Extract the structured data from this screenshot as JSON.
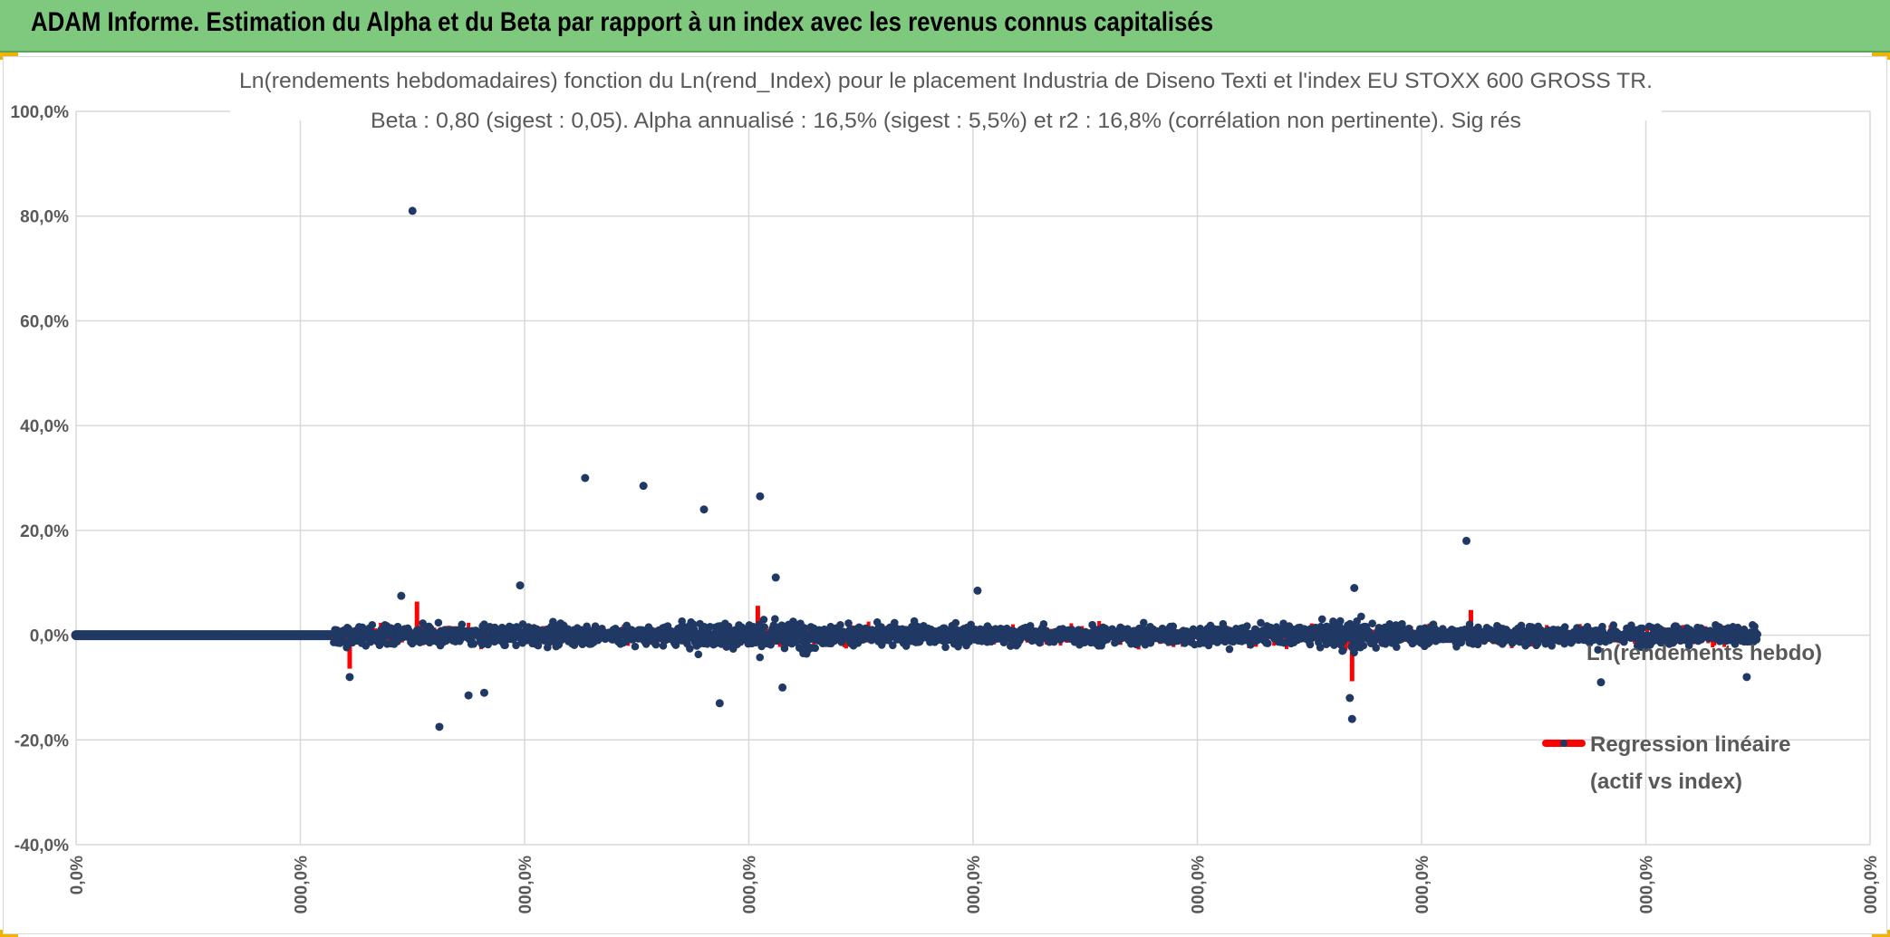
{
  "header": {
    "title": "ADAM Informe. Estimation du Alpha et du Beta par rapport à un index avec les revenus connus capitalisés"
  },
  "colors": {
    "header_bg": "#7fc97f",
    "scatter": "#203864",
    "regression": "#ff0000",
    "grid": "#d9d9d9",
    "text": "#595959"
  },
  "chart_data": {
    "type": "scatter",
    "title_line1": "Ln(rendements hebdomadaires) fonction du Ln(rend_Index) pour le placement Industria de Diseno Texti et l'index EU STOXX 600 GROSS TR.",
    "title_line2": "Beta : 0,80 (sigest : 0,05). Alpha annualisé : 16,5% (sigest : 5,5%) et r2 : 16,8% (corrélation non pertinente). Sig rés",
    "ylim": [
      -40,
      100
    ],
    "y_ticks": [
      -40,
      -20,
      0,
      20,
      40,
      60,
      80,
      100
    ],
    "y_tick_labels": [
      "-40,0%",
      "-20,0%",
      "0,0%",
      "20,0%",
      "40,0%",
      "60,0%",
      "80,0%",
      "100,0%"
    ],
    "x_ticks": [
      0,
      1,
      2,
      3,
      4,
      5,
      6,
      7,
      8
    ],
    "x_tick_labels": [
      "0,0%",
      "000,0%",
      "000,0%",
      "000,0%",
      "000,0%",
      "000,0%",
      "000,0%",
      "000,0%",
      "000,0%"
    ],
    "xlim": [
      0,
      8
    ],
    "series": [
      {
        "name": "Ln(rendements hebdo)",
        "type": "scatter",
        "flat_segment": {
          "x_from": 0,
          "x_to": 1.15,
          "y": 0
        },
        "dense_band": {
          "x_from": 1.15,
          "x_to": 7.5,
          "spread": 4
        },
        "outliers": [
          {
            "x": 1.5,
            "y": 81
          },
          {
            "x": 2.27,
            "y": 30
          },
          {
            "x": 2.53,
            "y": 28.5
          },
          {
            "x": 2.8,
            "y": 24
          },
          {
            "x": 3.05,
            "y": 26.5
          },
          {
            "x": 6.2,
            "y": 18
          },
          {
            "x": 1.62,
            "y": -17.5
          },
          {
            "x": 1.75,
            "y": -11.5
          },
          {
            "x": 1.82,
            "y": -11
          },
          {
            "x": 2.87,
            "y": -13
          },
          {
            "x": 5.69,
            "y": -16
          },
          {
            "x": 5.68,
            "y": -12
          },
          {
            "x": 1.22,
            "y": -8
          },
          {
            "x": 1.98,
            "y": 9.5
          },
          {
            "x": 3.12,
            "y": 11
          },
          {
            "x": 4.02,
            "y": 8.5
          },
          {
            "x": 5.7,
            "y": 9
          },
          {
            "x": 6.8,
            "y": -9
          },
          {
            "x": 7.45,
            "y": -8
          },
          {
            "x": 1.45,
            "y": 7.5
          },
          {
            "x": 3.15,
            "y": -10
          }
        ]
      },
      {
        "name": "Regression linéaire (actif vs index)",
        "type": "line",
        "beta": 0.8
      }
    ],
    "legend": {
      "position": "right",
      "items": [
        {
          "label": "Ln(rendements hebdo)"
        },
        {
          "label_line1": "Regression linéaire",
          "label_line2": "(actif vs index)"
        }
      ]
    }
  }
}
